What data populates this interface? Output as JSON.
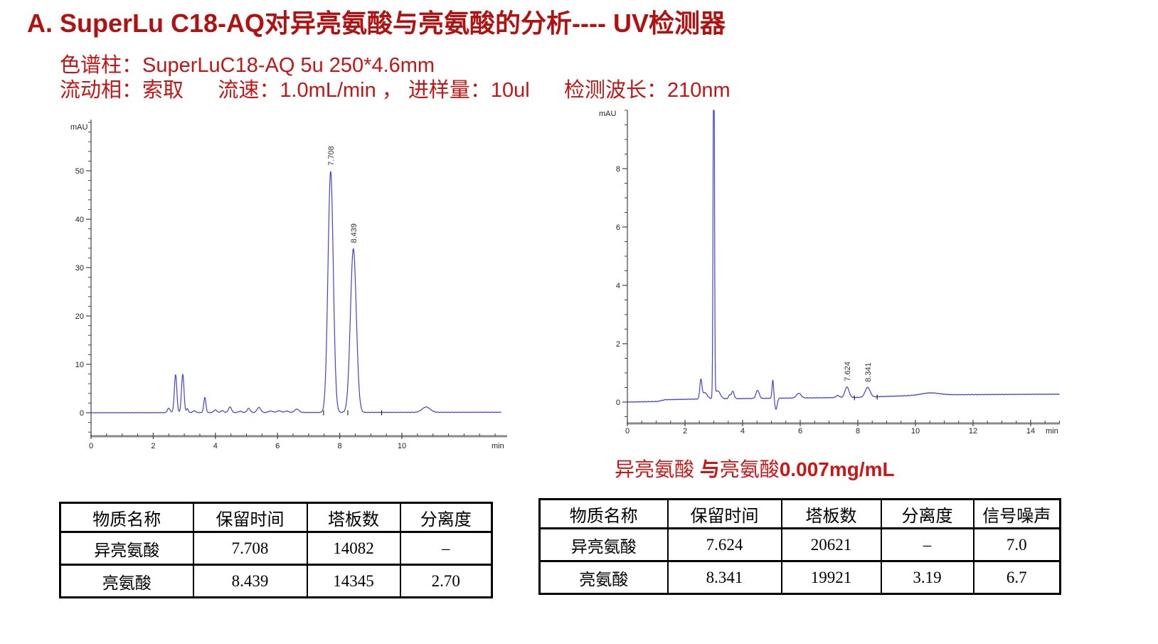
{
  "page": {
    "title": "A. SuperLu C18-AQ对异亮氨酸与亮氨酸的分析---- UV检测器",
    "conditions": {
      "line1": "色谱柱：SuperLuC18-AQ 5u 250*4.6mm",
      "line2": "流动相：索取      流速：1.0mL/min ， 进样量：10ul      检测波长：210nm"
    },
    "caption": {
      "part1": "异亮氨酸 ",
      "part2": "与",
      "part3": "亮氨酸",
      "part4": "0.007mg/mL"
    }
  },
  "colors": {
    "title_red": "#B01111",
    "condition_red": "#C31515",
    "caption_red": "#CC1616",
    "curve_blue": "#4242D2",
    "axis_gray": "#444444",
    "axis_bar_gray": "#8A8A8A",
    "table_border_black": "#000000"
  },
  "chart_data": [
    {
      "type": "line",
      "xlabel": "min",
      "ylabel": "mAU",
      "xlim": [
        0,
        13.2
      ],
      "ylim": [
        -4,
        60.5
      ],
      "x_ticks": [
        0,
        2,
        4,
        6,
        8,
        10
      ],
      "y_ticks": [
        0,
        10,
        20,
        30,
        40,
        50
      ],
      "x_minor_step": 0.5,
      "y_minor_step": 2,
      "grid": false,
      "legend": "none",
      "line_color": "#4242D2",
      "peaks": [
        [
          2.5,
          0.9,
          0.045
        ],
        [
          2.72,
          7.8,
          0.04
        ],
        [
          2.95,
          7.9,
          0.04
        ],
        [
          3.1,
          0.8,
          0.03
        ],
        [
          3.32,
          0.35,
          0.05
        ],
        [
          3.66,
          3.1,
          0.035
        ],
        [
          4.0,
          0.55,
          0.05
        ],
        [
          4.22,
          0.4,
          0.05
        ],
        [
          4.47,
          1.15,
          0.05
        ],
        [
          4.8,
          0.25,
          0.06
        ],
        [
          5.07,
          0.85,
          0.05
        ],
        [
          5.4,
          1.05,
          0.06
        ],
        [
          5.78,
          0.3,
          0.07
        ],
        [
          6.05,
          0.35,
          0.07
        ],
        [
          6.3,
          0.3,
          0.06
        ],
        [
          6.62,
          0.7,
          0.07
        ],
        [
          7.708,
          49.8,
          0.085
        ],
        [
          8.439,
          33.8,
          0.095
        ],
        [
          10.78,
          1.1,
          0.13
        ]
      ],
      "labeled_peaks": [
        {
          "label": "7.708",
          "t": 7.708,
          "apex": 49.9
        },
        {
          "label": "8.439",
          "t": 8.439,
          "apex": 33.9
        }
      ],
      "baseline": [
        [
          0,
          0
        ],
        [
          13.2,
          0.1
        ]
      ],
      "integration_marks": [
        7.48,
        8.26,
        9.35
      ]
    },
    {
      "type": "line",
      "xlabel": "min",
      "ylabel": "mAU",
      "xlim": [
        0,
        15.0
      ],
      "ylim": [
        -0.5,
        10.0
      ],
      "x_ticks": [
        0,
        2,
        4,
        6,
        8,
        10,
        12,
        14
      ],
      "y_ticks": [
        0,
        2,
        4,
        6,
        8
      ],
      "x_minor_step": 0.5,
      "y_minor_step": 0.5,
      "grid": false,
      "legend": "none",
      "line_color": "#4242D2",
      "peaks": [
        [
          2.55,
          0.62,
          0.035
        ],
        [
          2.68,
          0.22,
          0.09
        ],
        [
          3.0,
          14,
          0.022
        ],
        [
          3.13,
          0.28,
          0.09
        ],
        [
          3.55,
          0.12,
          0.04
        ],
        [
          3.66,
          0.25,
          0.045
        ],
        [
          4.52,
          0.28,
          0.055
        ],
        [
          5.05,
          0.62,
          0.028
        ],
        [
          5.16,
          -0.38,
          0.04
        ],
        [
          5.95,
          0.16,
          0.08
        ],
        [
          7.3,
          0.07,
          0.06
        ],
        [
          7.624,
          0.36,
          0.07
        ],
        [
          8.341,
          0.33,
          0.085
        ],
        [
          10.5,
          0.07,
          0.3
        ]
      ],
      "labeled_peaks": [
        {
          "label": "7.624",
          "t": 7.624,
          "apex": 0.52
        },
        {
          "label": "8.341",
          "t": 8.341,
          "apex": 0.49
        }
      ],
      "baseline": [
        [
          0,
          0
        ],
        [
          1.05,
          0.02
        ],
        [
          1.3,
          0.08
        ],
        [
          2.3,
          0.1
        ],
        [
          5,
          0.13
        ],
        [
          8,
          0.16
        ],
        [
          9.5,
          0.21
        ],
        [
          10.7,
          0.25
        ],
        [
          15,
          0.27
        ]
      ],
      "integration_marks": [
        7.88,
        8.67
      ]
    }
  ],
  "tables": {
    "left": {
      "headers": [
        "物质名称",
        "保留时间",
        "塔板数",
        "分离度"
      ],
      "rows": [
        [
          "异亮氨酸",
          "7.708",
          "14082",
          "–"
        ],
        [
          "亮氨酸",
          "8.439",
          "14345",
          "2.70"
        ]
      ]
    },
    "right": {
      "headers": [
        "物质名称",
        "保留时间",
        "塔板数",
        "分离度",
        "信号噪声"
      ],
      "rows": [
        [
          "异亮氨酸",
          "7.624",
          "20621",
          "–",
          "7.0"
        ],
        [
          "亮氨酸",
          "8.341",
          "19921",
          "3.19",
          "6.7"
        ]
      ]
    }
  }
}
